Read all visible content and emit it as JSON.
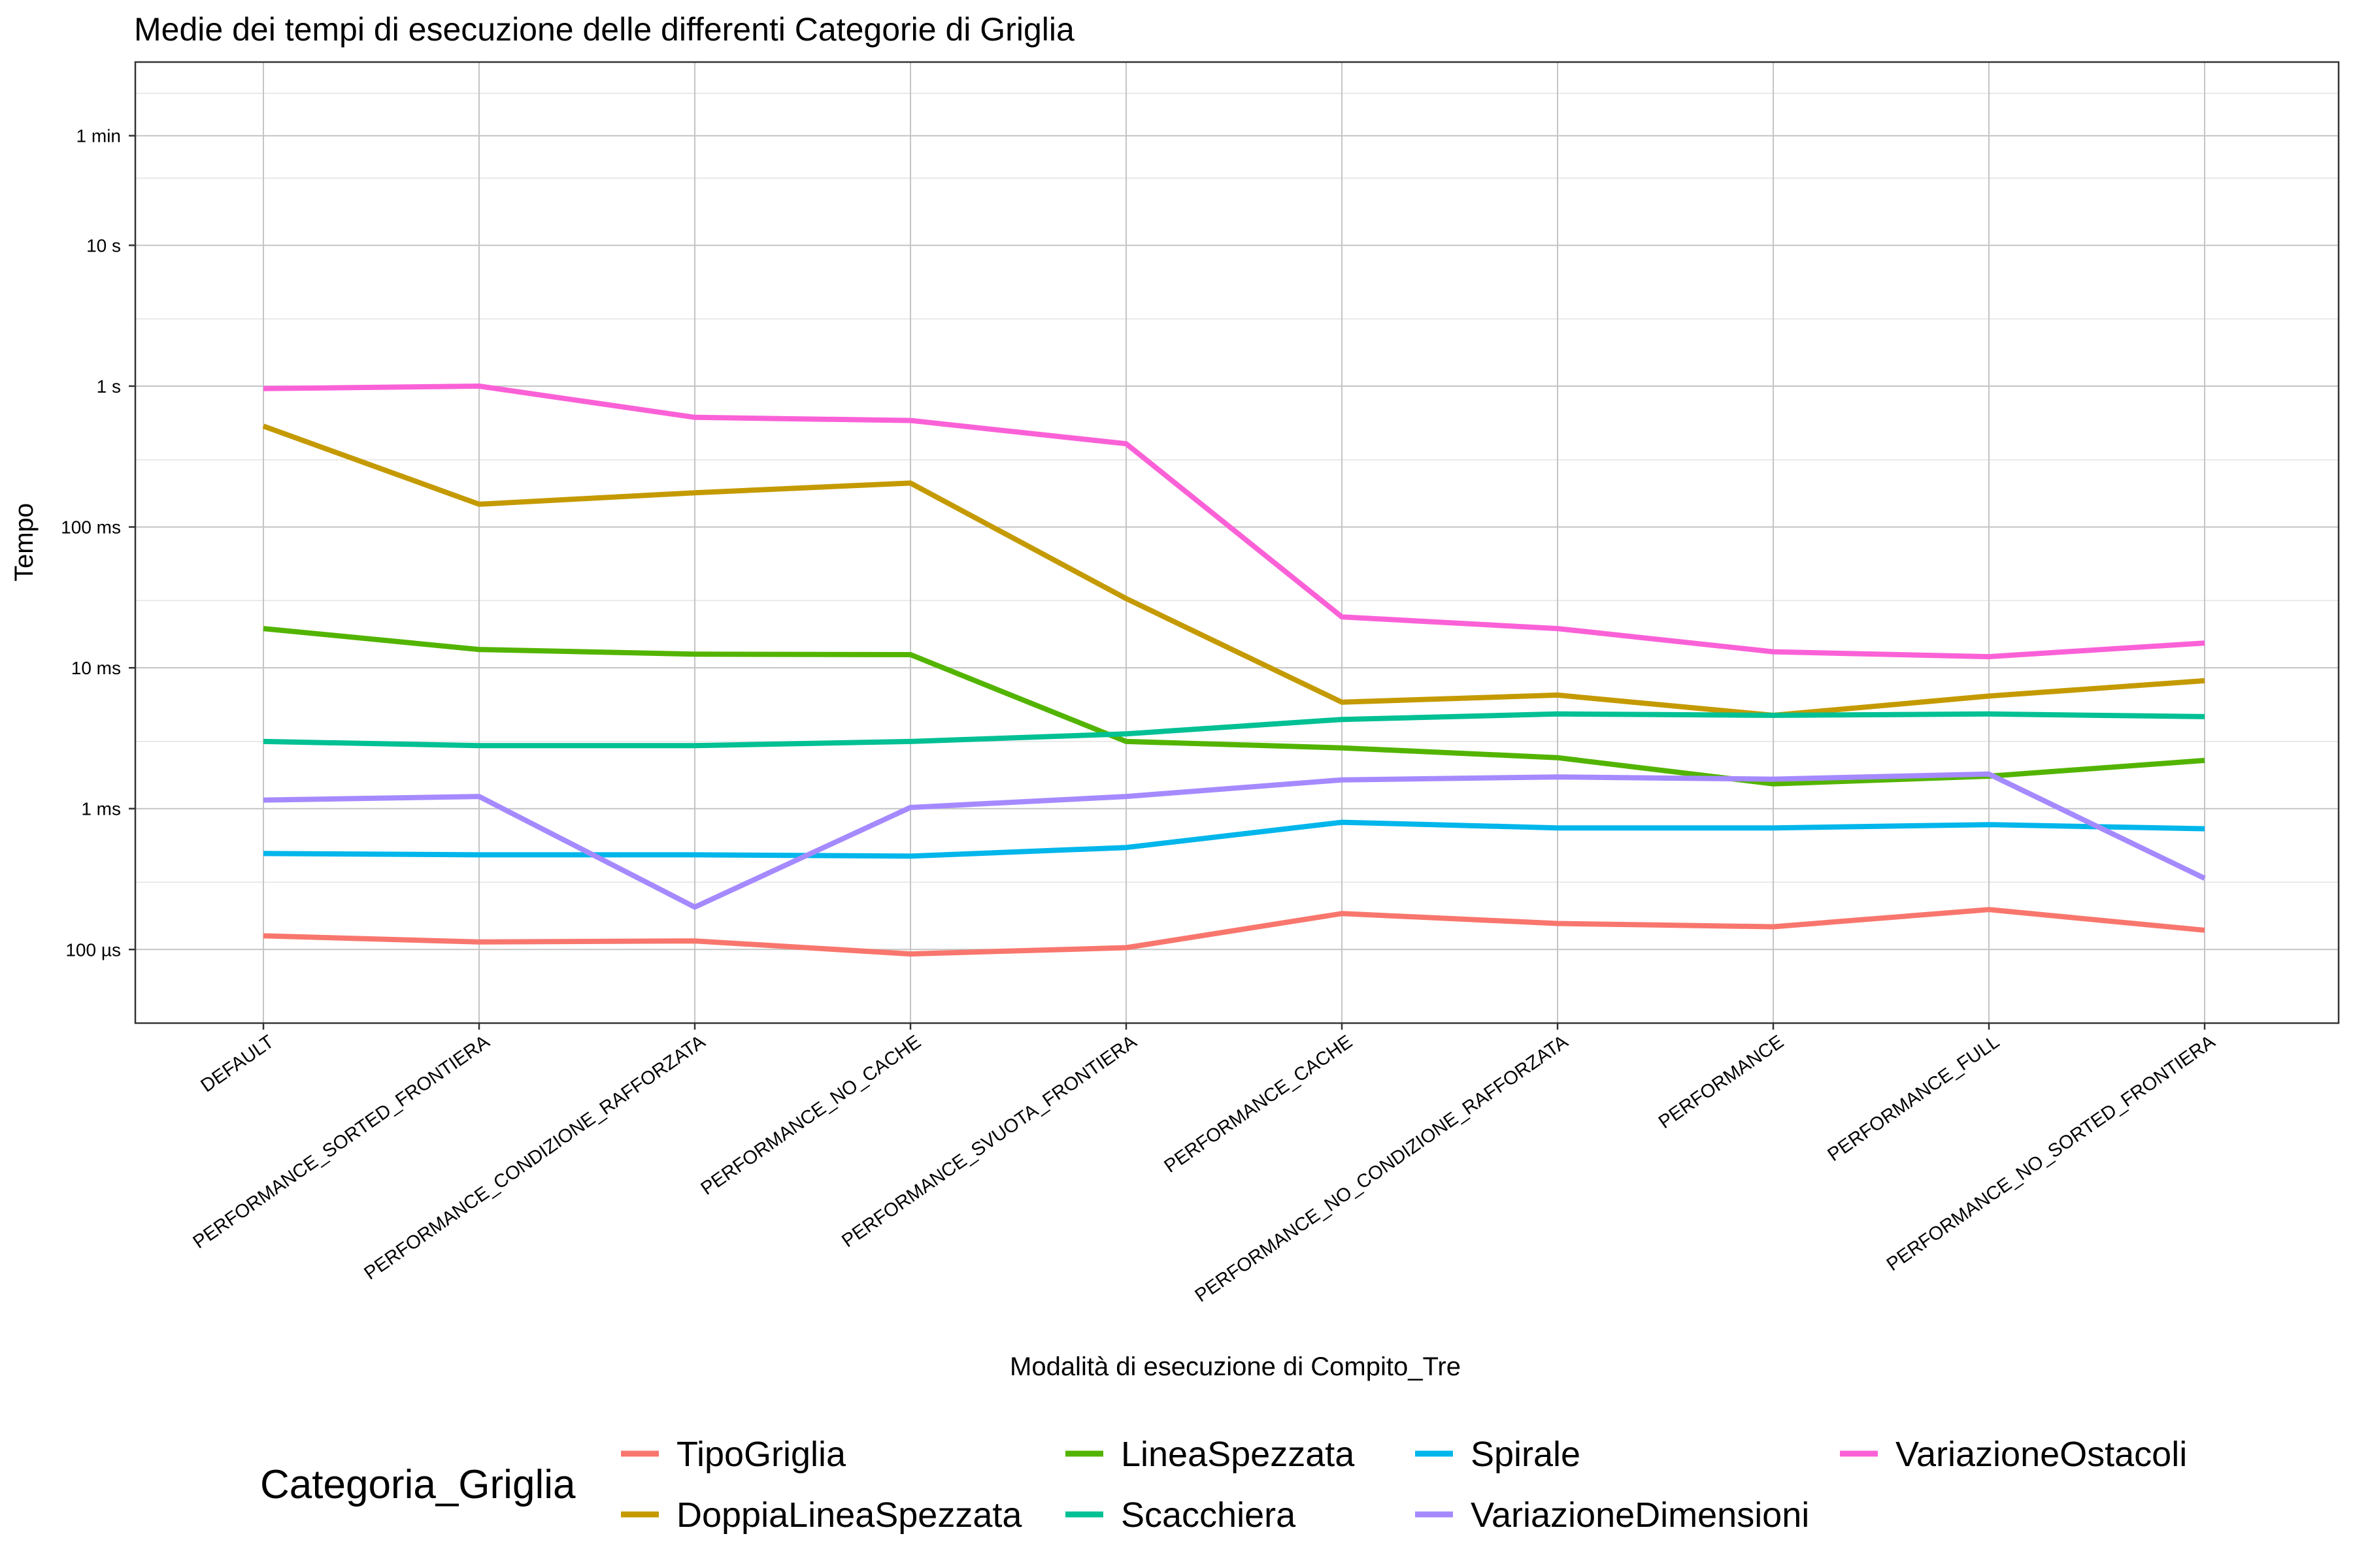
{
  "chart_data": {
    "type": "line",
    "title": "Medie dei tempi di esecuzione delle differenti Categorie di Griglia",
    "xlabel": "Modalità di esecuzione di Compito_Tre",
    "ylabel": "Tempo",
    "yscale": "log10",
    "y_unit": "seconds",
    "ylim": [
      3e-05,
      200
    ],
    "yticks": [
      {
        "value": 0.0001,
        "label": "100 µs"
      },
      {
        "value": 0.001,
        "label": "1 ms"
      },
      {
        "value": 0.01,
        "label": "10 ms"
      },
      {
        "value": 0.1,
        "label": "100 ms"
      },
      {
        "value": 1,
        "label": "1 s"
      },
      {
        "value": 10,
        "label": "10 s"
      },
      {
        "value": 60,
        "label": "1 min"
      }
    ],
    "y_minor_gridlines": [
      3e-05,
      0.0003,
      0.003,
      0.03,
      0.3,
      3,
      30,
      120
    ],
    "grid": true,
    "legend_position": "bottom",
    "legend_title": "Categoria_Griglia",
    "categories": [
      "DEFAULT",
      "PERFORMANCE_SORTED_FRONTIERA",
      "PERFORMANCE_CONDIZIONE_RAFFORZATA",
      "PERFORMANCE_NO_CACHE",
      "PERFORMANCE_SVUOTA_FRONTIERA",
      "PERFORMANCE_CACHE",
      "PERFORMANCE_NO_CONDIZIONE_RAFFORZATA",
      "PERFORMANCE",
      "PERFORMANCE_FULL",
      "PERFORMANCE_NO_SORTED_FRONTIERA"
    ],
    "series": [
      {
        "name": "TipoGriglia",
        "color": "#F8766D",
        "values": [
          0.000125,
          0.000113,
          0.000115,
          9.3e-05,
          0.000103,
          0.00018,
          0.000153,
          0.000145,
          0.000192,
          0.000137
        ]
      },
      {
        "name": "DoppiaLineaSpezzata",
        "color": "#C49A00",
        "values": [
          0.52,
          0.145,
          0.175,
          0.205,
          0.031,
          0.0057,
          0.0064,
          0.0046,
          0.0063,
          0.0081
        ]
      },
      {
        "name": "LineaSpezzata",
        "color": "#53B400",
        "values": [
          0.019,
          0.0135,
          0.0125,
          0.0124,
          0.003,
          0.0027,
          0.0023,
          0.0015,
          0.0017,
          0.0022
        ]
      },
      {
        "name": "Scacchiera",
        "color": "#00C094",
        "values": [
          0.003,
          0.0028,
          0.0028,
          0.003,
          0.0034,
          0.0043,
          0.0047,
          0.0046,
          0.0047,
          0.0045
        ]
      },
      {
        "name": "Spirale",
        "color": "#00B6EB",
        "values": [
          0.00048,
          0.00047,
          0.00047,
          0.00046,
          0.00053,
          0.0008,
          0.00073,
          0.00073,
          0.00077,
          0.00072
        ]
      },
      {
        "name": "VariazioneDimensioni",
        "color": "#A58AFF",
        "values": [
          0.00115,
          0.00122,
          0.0002,
          0.00102,
          0.00122,
          0.0016,
          0.00168,
          0.00162,
          0.00176,
          0.00032
        ]
      },
      {
        "name": "VariazioneOstacoli",
        "color": "#FB61D7",
        "values": [
          0.96,
          1.0,
          0.6,
          0.57,
          0.39,
          0.023,
          0.019,
          0.013,
          0.012,
          0.015
        ]
      }
    ]
  }
}
